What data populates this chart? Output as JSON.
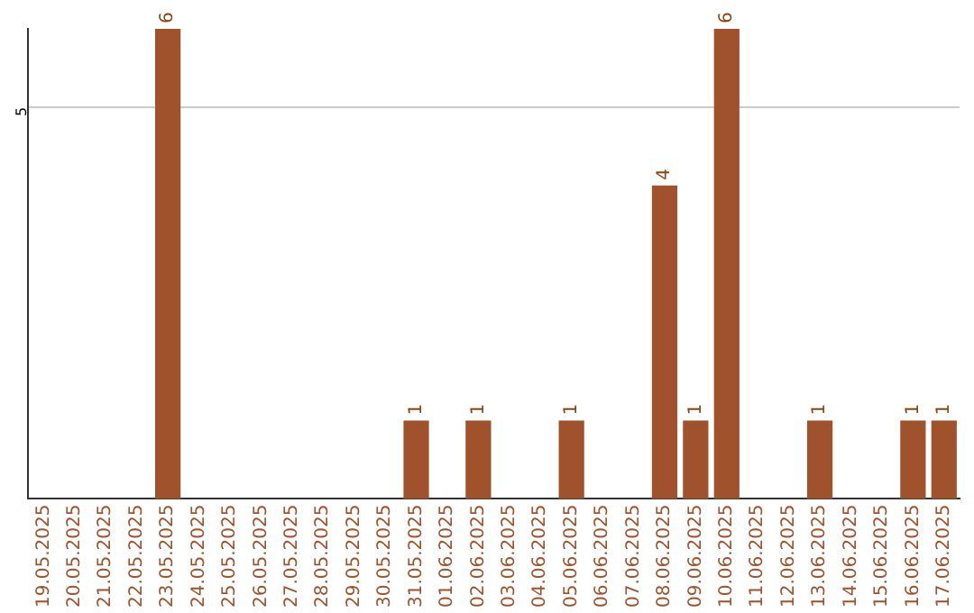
{
  "chart_data": {
    "type": "bar",
    "categories": [
      "19.05.2025",
      "20.05.2025",
      "21.05.2025",
      "22.05.2025",
      "23.05.2025",
      "24.05.2025",
      "25.05.2025",
      "26.05.2025",
      "27.05.2025",
      "28.05.2025",
      "29.05.2025",
      "30.05.2025",
      "31.05.2025",
      "01.06.2025",
      "02.06.2025",
      "03.06.2025",
      "04.06.2025",
      "05.06.2025",
      "06.06.2025",
      "07.06.2025",
      "08.06.2025",
      "09.06.2025",
      "10.06.2025",
      "11.06.2025",
      "12.06.2025",
      "13.06.2025",
      "14.06.2025",
      "15.06.2025",
      "16.06.2025",
      "17.06.2025"
    ],
    "values": [
      0,
      0,
      0,
      0,
      6,
      0,
      0,
      0,
      0,
      0,
      0,
      0,
      1,
      0,
      1,
      0,
      0,
      1,
      0,
      0,
      4,
      1,
      6,
      0,
      0,
      1,
      0,
      0,
      1,
      1
    ],
    "value_labels": [
      null,
      null,
      null,
      null,
      "6",
      null,
      null,
      null,
      null,
      null,
      null,
      null,
      "1",
      null,
      "1",
      null,
      null,
      "1",
      null,
      null,
      "4",
      "1",
      "6",
      null,
      null,
      "1",
      null,
      null,
      "1",
      "1"
    ],
    "color": "#a0522d",
    "ylim": [
      0,
      6
    ],
    "yticks": [
      5
    ],
    "grid": "y",
    "legend": false
  }
}
